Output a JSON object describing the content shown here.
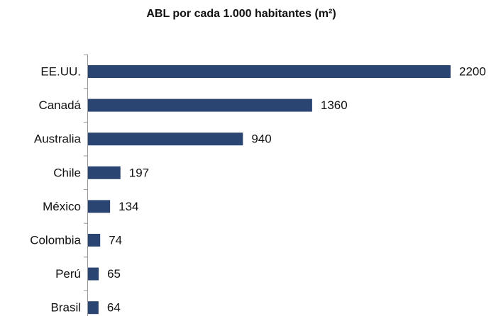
{
  "chart_data": {
    "type": "barh",
    "title": "ABL por cada 1.000 habitantes (m²)",
    "categories": [
      "EE.UU.",
      "Canadá",
      "Australia",
      "Chile",
      "México",
      "Colombia",
      "Perú",
      "Brasil"
    ],
    "values": [
      2200,
      1360,
      940,
      197,
      134,
      74,
      65,
      64
    ],
    "color": "#2b4572"
  }
}
